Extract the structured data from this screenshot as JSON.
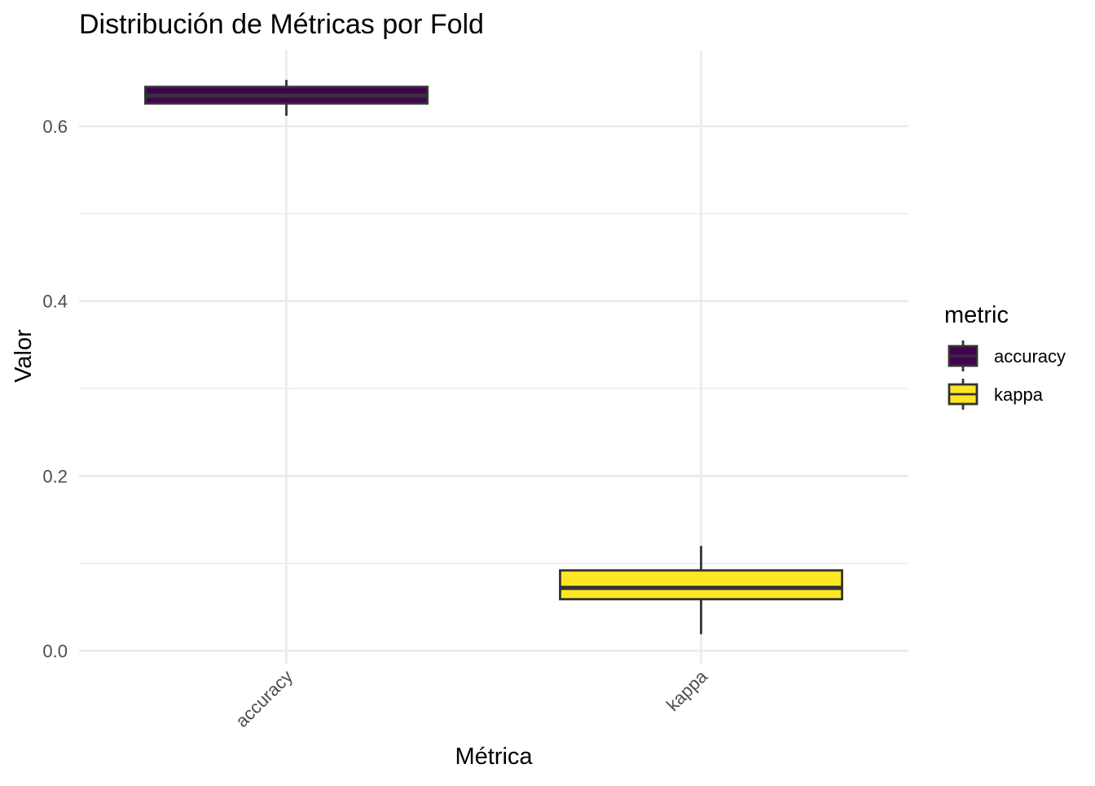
{
  "chart_data": {
    "type": "boxplot",
    "title": "Distribución de Métricas por Fold",
    "xlabel": "Métrica",
    "ylabel": "Valor",
    "categories": [
      "accuracy",
      "kappa"
    ],
    "ylim": [
      0.0,
      0.6
    ],
    "yticks": [
      0.0,
      0.2,
      0.4,
      0.6
    ],
    "y_tick_labels": [
      "0.0",
      "0.2",
      "0.4",
      "0.6"
    ],
    "grid": true,
    "legend": {
      "title": "metric",
      "position": "right",
      "entries": [
        "accuracy",
        "kappa"
      ]
    },
    "series": [
      {
        "category": "accuracy",
        "fill": "#440154",
        "whisker_low": 0.612,
        "q1": 0.626,
        "median": 0.635,
        "q3": 0.645,
        "whisker_high": 0.653
      },
      {
        "category": "kappa",
        "fill": "#FDE725",
        "whisker_low": 0.019,
        "q1": 0.059,
        "median": 0.072,
        "q3": 0.092,
        "whisker_high": 0.12
      }
    ]
  }
}
